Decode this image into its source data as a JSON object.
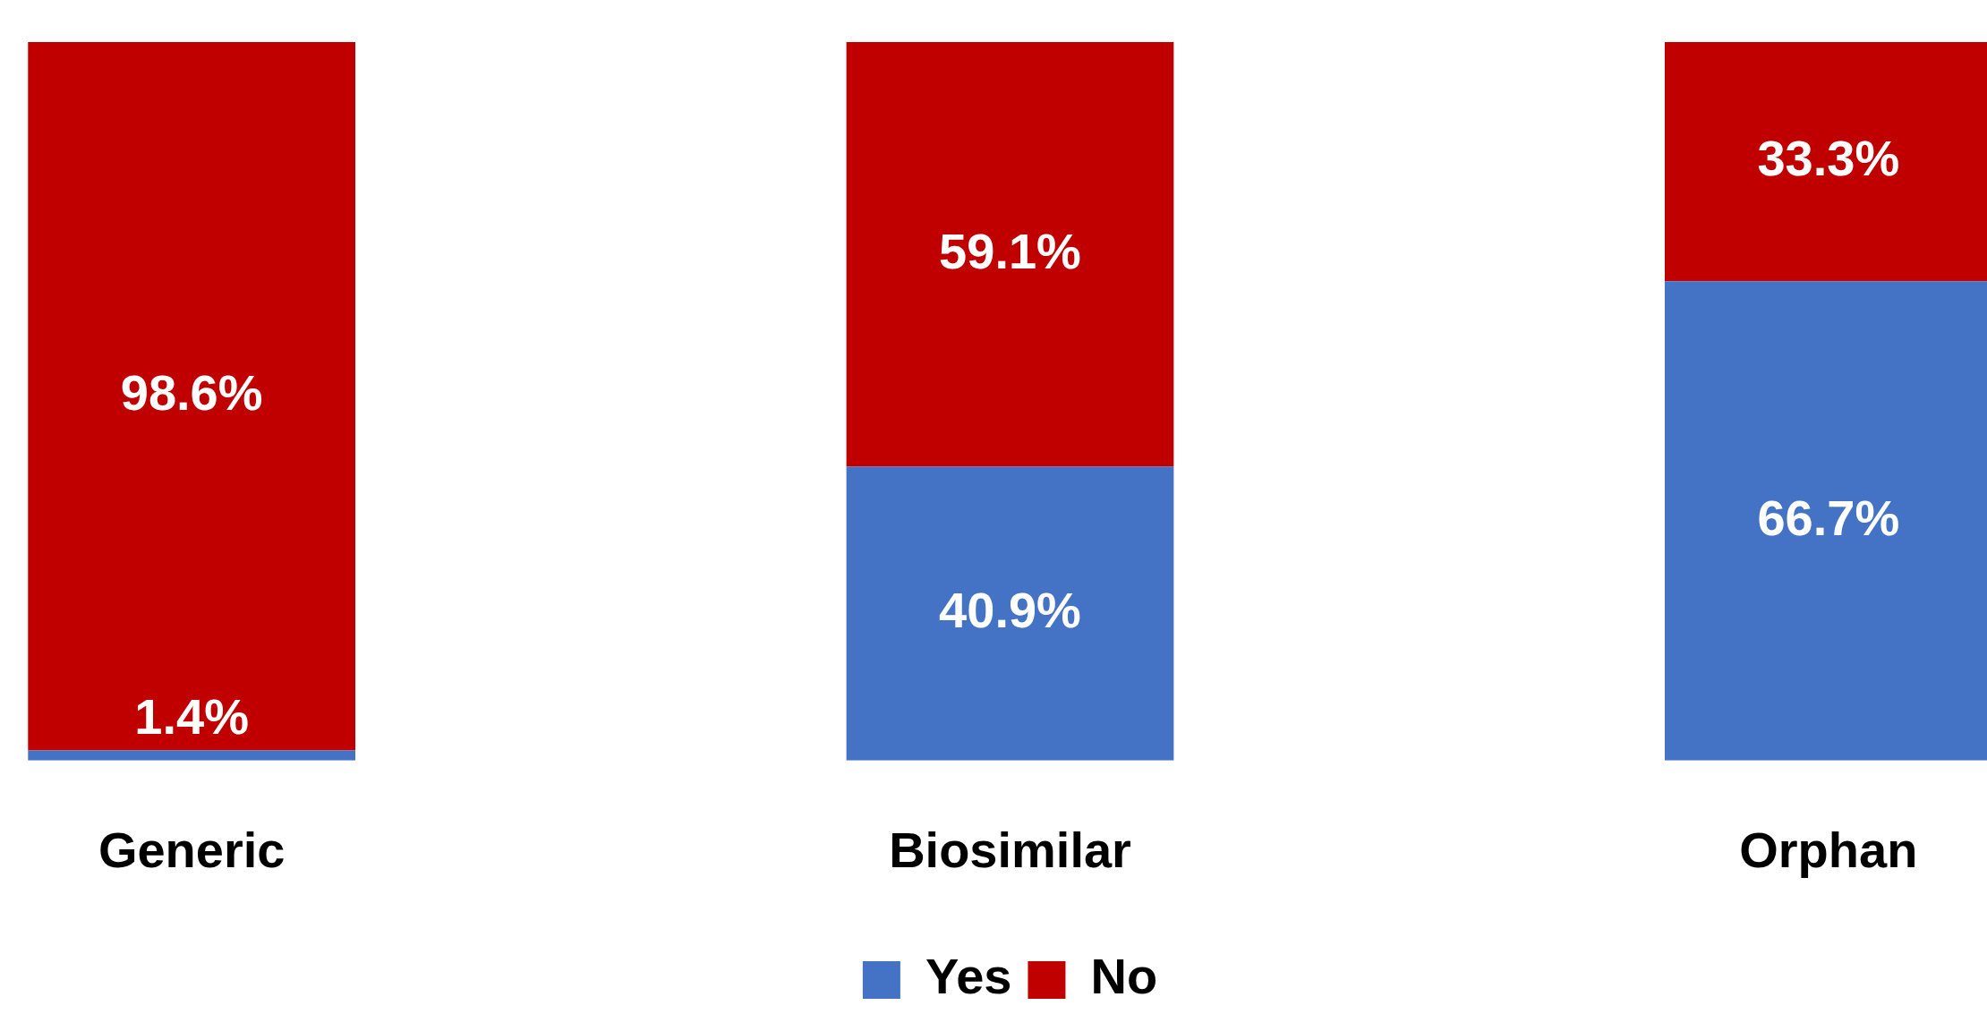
{
  "chart_data": {
    "type": "bar",
    "stacked": true,
    "categories": [
      "Generic",
      "Biosimilar",
      "Orphan"
    ],
    "series": [
      {
        "name": "Yes",
        "color": "#4472c4",
        "values": [
          1.4,
          40.9,
          66.7
        ],
        "value_labels": [
          "1.4%",
          "40.9%",
          "66.7%"
        ]
      },
      {
        "name": "No",
        "color": "#c00000",
        "values": [
          98.6,
          59.1,
          33.3
        ],
        "value_labels": [
          "98.6%",
          "59.1%",
          "33.3%"
        ]
      }
    ],
    "ylim": [
      0,
      100
    ],
    "tick_labels": "x",
    "legend": "bottom"
  }
}
